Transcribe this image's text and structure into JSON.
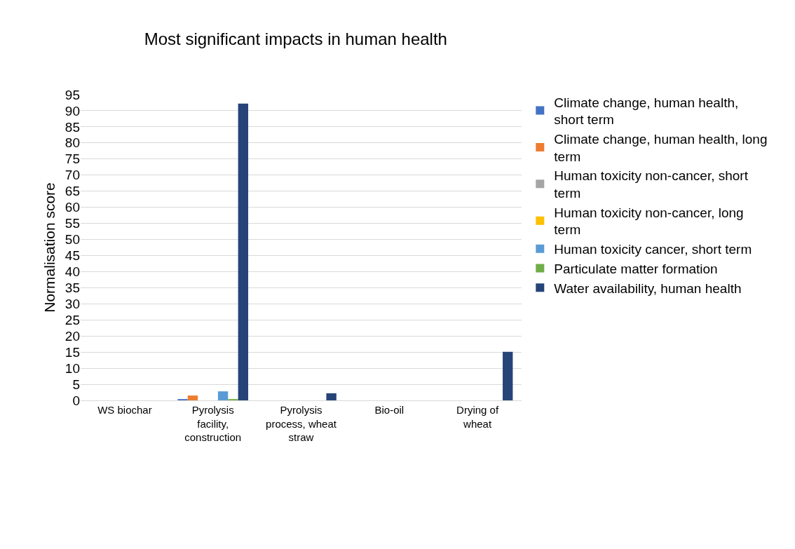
{
  "chart_data": {
    "type": "bar",
    "title": "Most significant impacts in human health",
    "ylabel": "Normalisation score",
    "categories": [
      "WS biochar",
      "Pyrolysis facility, construction",
      "Pyrolysis process, wheat straw",
      "Bio-oil",
      "Drying of wheat"
    ],
    "series": [
      {
        "name": "Climate change, human health, short term",
        "color": "#4472c4",
        "values": [
          0,
          0.4,
          0,
          0,
          0
        ]
      },
      {
        "name": "Climate change, human health, long term",
        "color": "#ed7d31",
        "values": [
          0,
          1.5,
          0,
          0,
          0
        ]
      },
      {
        "name": "Human toxicity non-cancer, short term",
        "color": "#a5a5a5",
        "values": [
          0,
          null,
          0,
          0,
          null
        ]
      },
      {
        "name": "Human toxicity non-cancer, long term",
        "color": "#ffc000",
        "values": [
          0,
          null,
          0,
          0,
          0
        ]
      },
      {
        "name": "Human toxicity cancer, short term",
        "color": "#5b9bd5",
        "values": [
          0,
          2.8,
          0,
          0,
          0
        ]
      },
      {
        "name": "Particulate matter formation",
        "color": "#70ad47",
        "values": [
          0,
          0.4,
          0,
          0,
          0
        ]
      },
      {
        "name": "Water availability, human health",
        "color": "#264478",
        "values": [
          0,
          92.2,
          2.2,
          0,
          15.1
        ]
      }
    ],
    "ylim": [
      0,
      95
    ],
    "yticks": [
      0,
      5,
      10,
      15,
      20,
      25,
      30,
      35,
      40,
      45,
      50,
      55,
      60,
      65,
      70,
      75,
      80,
      85,
      90,
      95
    ],
    "grid": "y",
    "legend": "right"
  }
}
